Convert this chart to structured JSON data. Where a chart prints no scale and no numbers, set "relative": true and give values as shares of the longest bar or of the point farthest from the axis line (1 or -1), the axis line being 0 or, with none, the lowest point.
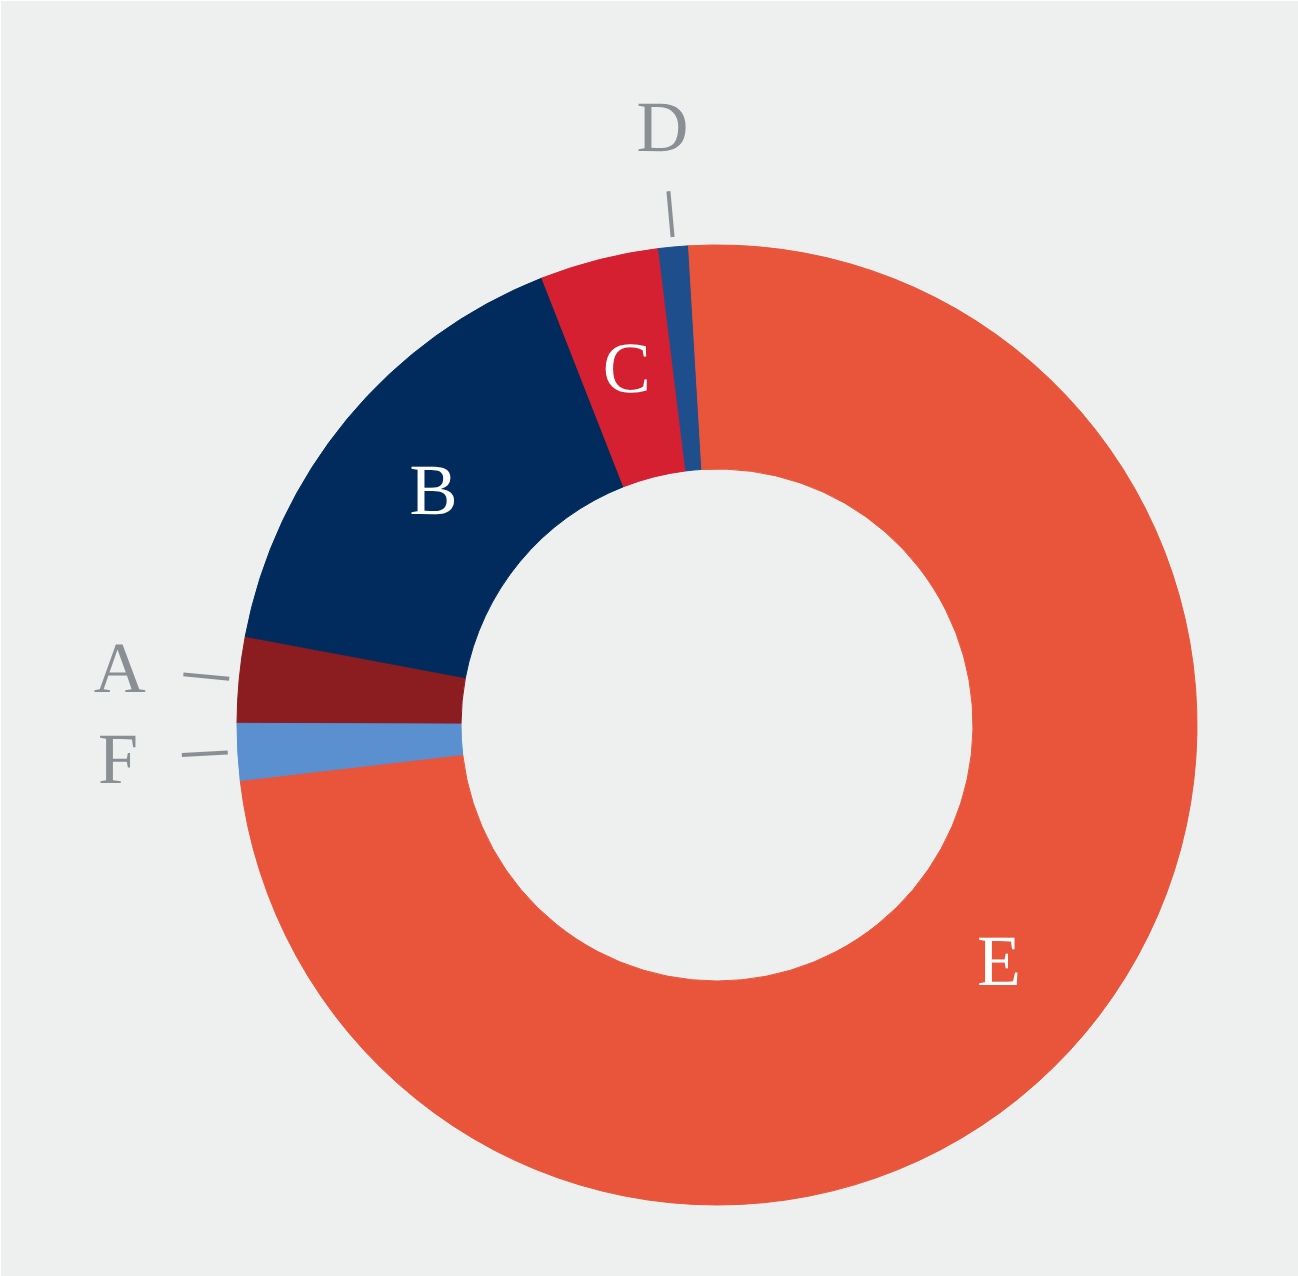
{
  "chart_data": {
    "type": "donut",
    "relative": true,
    "categories": [
      "A",
      "B",
      "C",
      "D",
      "E",
      "F"
    ],
    "values": [
      2.9,
      16.1,
      4.0,
      1.0,
      74.1,
      1.9
    ],
    "colors": [
      "#8b1c20",
      "#002b5c",
      "#d42030",
      "#1f4e8c",
      "#e8553a",
      "#5a8fd0"
    ]
  }
}
